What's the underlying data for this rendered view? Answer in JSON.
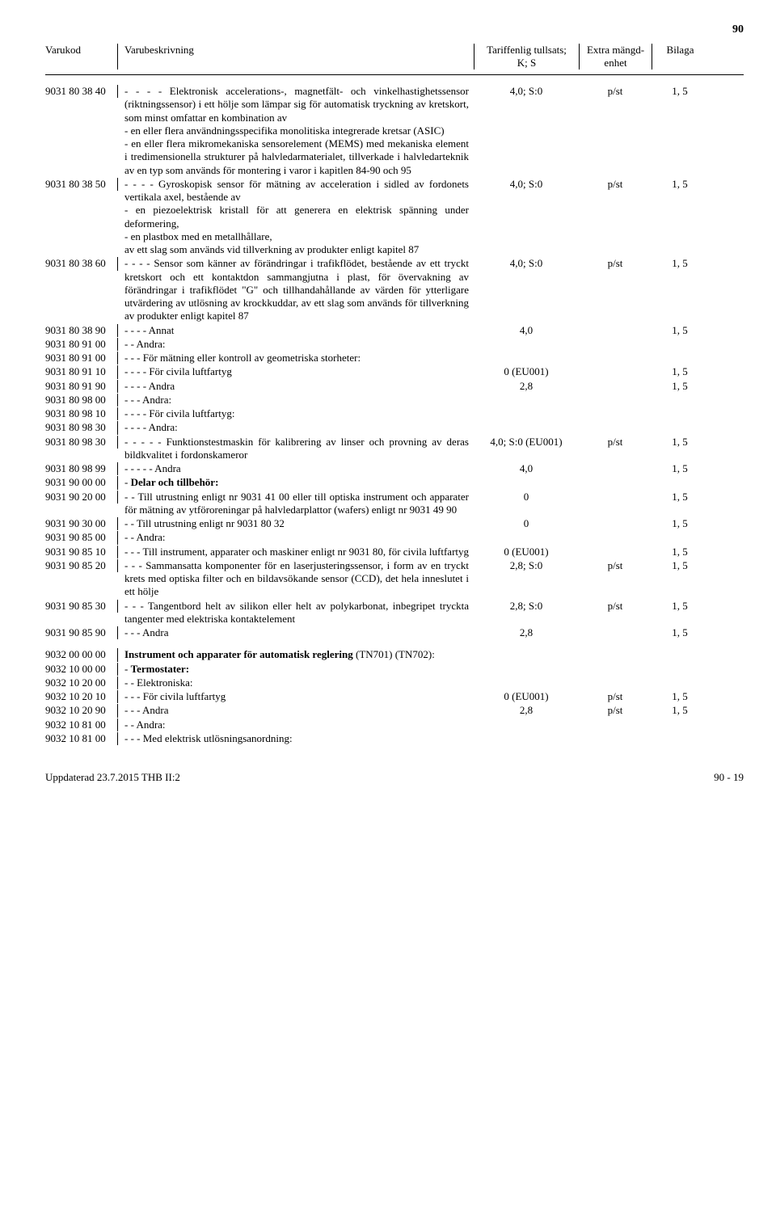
{
  "page_number_top": "90",
  "header": {
    "code": "Varukod",
    "desc": "Varubeskrivning",
    "tariff_line1": "Tariffenlig tullsats;",
    "tariff_line2": "K; S",
    "extra_line1": "Extra mängd-",
    "extra_line2": "enhet",
    "bilaga": "Bilaga"
  },
  "rows": [
    {
      "code": "9031 80 38 40",
      "desc": "- - - - Elektronisk accelerations-, magnetfält- och vinkelhastighetssensor (riktningssensor) i ett hölje som lämpar sig för automatisk tryckning av kretskort, som minst omfattar en kombination av\n- en eller flera användningsspecifika monolitiska integrerade kretsar (ASIC)\n- en eller flera mikromekaniska sensorelement (MEMS) med mekaniska element i tredimensionella strukturer på halvledarmaterialet, tillverkade i halvledarteknik av en typ som används för montering i varor i kapitlen 84-90 och 95",
      "tariff": "4,0; S:0",
      "extra": "p/st",
      "bilaga": "1, 5"
    },
    {
      "code": "9031 80 38 50",
      "desc": "- - - - Gyroskopisk sensor för mätning av acceleration i sidled av fordonets vertikala axel, bestående av\n- en piezoelektrisk kristall för att generera en elektrisk spänning under deformering,\n- en plastbox med en metallhållare,\nav ett slag som används vid tillverkning av produkter enligt kapitel 87",
      "tariff": "4,0; S:0",
      "extra": "p/st",
      "bilaga": "1, 5"
    },
    {
      "code": "9031 80 38 60",
      "desc": "- - - - Sensor som känner av förändringar i trafikflödet, bestående av ett tryckt kretskort och ett kontaktdon sammangjutna i plast, för övervakning av förändringar i trafikflödet \"G\" och tillhandahållande av värden för ytterligare utvärdering av utlösning av krockkuddar, av ett slag som används för tillverkning av produkter enligt kapitel 87",
      "tariff": "4,0; S:0",
      "extra": "p/st",
      "bilaga": "1, 5"
    },
    {
      "code": "9031 80 38 90",
      "desc": "- - - - Annat",
      "tariff": "4,0",
      "extra": "",
      "bilaga": "1, 5"
    },
    {
      "code": "9031 80 91 00",
      "desc": "- - Andra:",
      "tariff": "",
      "extra": "",
      "bilaga": ""
    },
    {
      "code": "9031 80 91 00",
      "desc": "- - - För mätning eller kontroll av geometriska storheter:",
      "tariff": "",
      "extra": "",
      "bilaga": ""
    },
    {
      "code": "9031 80 91 10",
      "desc": "- - - - För civila luftfartyg",
      "tariff": "0 (EU001)",
      "extra": "",
      "bilaga": "1, 5"
    },
    {
      "code": "9031 80 91 90",
      "desc": "- - - - Andra",
      "tariff": "2,8",
      "extra": "",
      "bilaga": "1, 5"
    },
    {
      "code": "9031 80 98 00",
      "desc": "- - - Andra:",
      "tariff": "",
      "extra": "",
      "bilaga": ""
    },
    {
      "code": "9031 80 98 10",
      "desc": "- - - - För civila luftfartyg:",
      "tariff": "",
      "extra": "",
      "bilaga": ""
    },
    {
      "code": "9031 80 98 30",
      "desc": "- - - - Andra:",
      "tariff": "",
      "extra": "",
      "bilaga": ""
    },
    {
      "code": "9031 80 98 30",
      "desc": "- - - - - Funktionstestmaskin för kalibrering av linser och provning av deras bildkvalitet i fordonskameror",
      "tariff": "4,0; S:0 (EU001)",
      "extra": "p/st",
      "bilaga": "1, 5"
    },
    {
      "code": "9031 80 98 99",
      "desc": "- - - - - Andra",
      "tariff": "4,0",
      "extra": "",
      "bilaga": "1, 5"
    },
    {
      "code": "9031 90 00 00",
      "desc": "- Delar och tillbehör:",
      "tariff": "",
      "extra": "",
      "bilaga": "",
      "bold": true
    },
    {
      "code": "9031 90 20 00",
      "desc": "- - Till utrustning enligt nr 9031 41 00 eller till optiska instrument och apparater för mätning av ytföroreningar på halvledarplattor (wafers) enligt nr 9031 49 90",
      "tariff": "0",
      "extra": "",
      "bilaga": "1, 5"
    },
    {
      "code": "9031 90 30 00",
      "desc": "- - Till utrustning enligt nr 9031 80 32",
      "tariff": "0",
      "extra": "",
      "bilaga": "1, 5"
    },
    {
      "code": "9031 90 85 00",
      "desc": "- - Andra:",
      "tariff": "",
      "extra": "",
      "bilaga": ""
    },
    {
      "code": "9031 90 85 10",
      "desc": "- - - Till instrument, apparater och maskiner enligt nr 9031 80, för civila luftfartyg",
      "tariff": "0 (EU001)",
      "extra": "",
      "bilaga": "1, 5"
    },
    {
      "code": "9031 90 85 20",
      "desc": "- - - Sammansatta komponenter för en laserjusteringssensor, i form av en tryckt krets med optiska filter och en bildavsökande sensor (CCD), det hela inneslutet i ett hölje",
      "tariff": "2,8; S:0",
      "extra": "p/st",
      "bilaga": "1, 5"
    },
    {
      "code": "9031 90 85 30",
      "desc": "- - - Tangentbord helt av silikon eller helt av polykarbonat, inbegripet tryckta tangenter med elektriska kontaktelement",
      "tariff": "2,8; S:0",
      "extra": "p/st",
      "bilaga": "1, 5"
    },
    {
      "code": "9031 90 85 90",
      "desc": "- - - Andra",
      "tariff": "2,8",
      "extra": "",
      "bilaga": "1, 5"
    }
  ],
  "rows2": [
    {
      "code": "9032 00 00 00",
      "desc": "Instrument och apparater för automatisk reglering (TN701) (TN702):",
      "tariff": "",
      "extra": "",
      "bilaga": "",
      "boldLead": true
    },
    {
      "code": "9032 10 00 00",
      "desc": "- Termostater:",
      "tariff": "",
      "extra": "",
      "bilaga": "",
      "bold": true
    },
    {
      "code": "9032 10 20 00",
      "desc": "- - Elektroniska:",
      "tariff": "",
      "extra": "",
      "bilaga": ""
    },
    {
      "code": "9032 10 20 10",
      "desc": "- - - För civila luftfartyg",
      "tariff": "0 (EU001)",
      "extra": "p/st",
      "bilaga": "1, 5"
    },
    {
      "code": "9032 10 20 90",
      "desc": "- - - Andra",
      "tariff": "2,8",
      "extra": "p/st",
      "bilaga": "1, 5"
    },
    {
      "code": "9032 10 81 00",
      "desc": "- - Andra:",
      "tariff": "",
      "extra": "",
      "bilaga": ""
    },
    {
      "code": "9032 10 81 00",
      "desc": "- - - Med elektrisk utlösningsanordning:",
      "tariff": "",
      "extra": "",
      "bilaga": ""
    }
  ],
  "footer": {
    "left": "Uppdaterad 23.7.2015 THB II:2",
    "right": "90 - 19"
  }
}
